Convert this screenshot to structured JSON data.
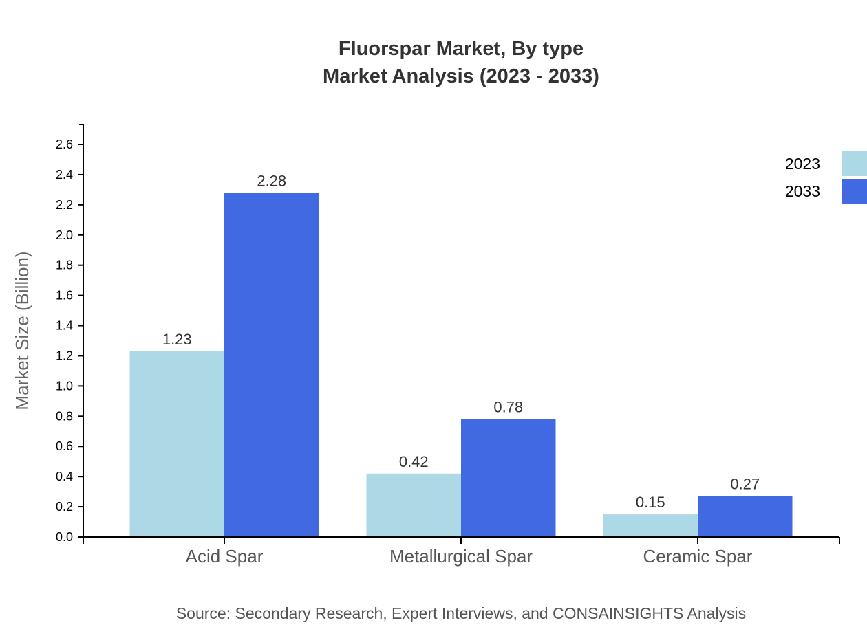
{
  "chart_data": {
    "type": "bar",
    "title": "Fluorspar Market, By type",
    "subtitle": "Market Analysis (2023 - 2033)",
    "xlabel": "",
    "ylabel": "Market Size (Billion)",
    "ylim": [
      0,
      2.73
    ],
    "yticks": [
      "0.0",
      "0.2",
      "0.4",
      "0.6",
      "0.8",
      "1.0",
      "1.2",
      "1.4",
      "1.6",
      "1.8",
      "2.0",
      "2.2",
      "2.4",
      "2.6"
    ],
    "categories": [
      "Acid Spar",
      "Metallurgical Spar",
      "Ceramic Spar"
    ],
    "series": [
      {
        "name": "2023",
        "color": "#add8e6",
        "values": [
          1.23,
          0.42,
          0.15
        ],
        "labels": [
          "1.23",
          "0.42",
          "0.15"
        ]
      },
      {
        "name": "2033",
        "color": "#4169e1",
        "values": [
          2.28,
          0.78,
          0.27
        ],
        "labels": [
          "2.28",
          "0.78",
          "0.27"
        ]
      }
    ],
    "legend_position": "top-right",
    "grid": false
  },
  "source": "Source: Secondary Research, Expert Interviews, and CONSAINSIGHTS Analysis"
}
